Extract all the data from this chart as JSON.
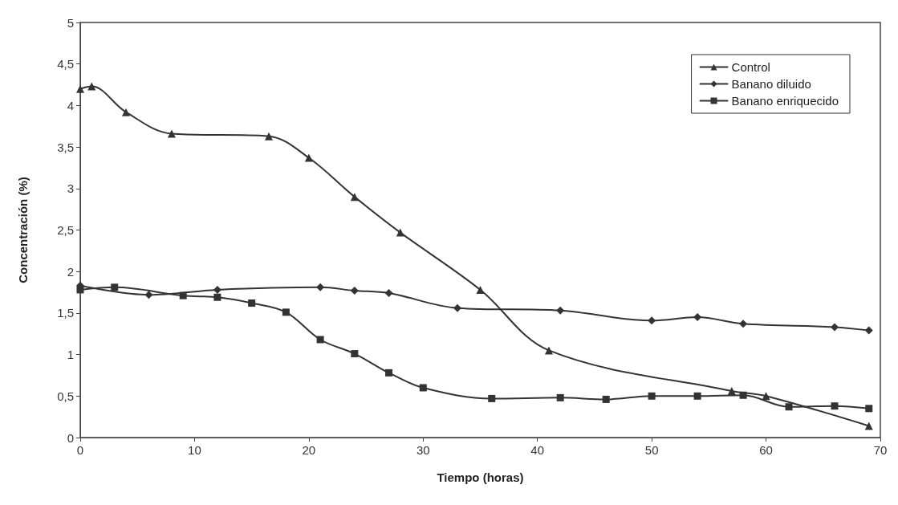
{
  "chart_data": {
    "type": "line",
    "xlabel": "Tiempo (horas)",
    "ylabel": "Concentración (%)",
    "xlim": [
      0,
      70
    ],
    "xticks": [
      0,
      10,
      20,
      30,
      40,
      50,
      60,
      70
    ],
    "ylim": [
      0,
      5
    ],
    "yticks": [
      0,
      {
        "value": 0.5,
        "label": "0,5"
      },
      1,
      {
        "value": 1.5,
        "label": "1,5"
      },
      2,
      {
        "value": 2.5,
        "label": "2,5"
      },
      3,
      {
        "value": 3.5,
        "label": "3,5"
      },
      4,
      {
        "value": 4.5,
        "label": "4,5"
      },
      5
    ],
    "grid": false,
    "legend": "top right",
    "line_style": "solid",
    "series": [
      {
        "name": "Control",
        "color": "#333333",
        "marker": "triangle",
        "x": [
          0,
          1,
          4,
          8,
          16.5,
          20,
          24,
          28,
          35,
          41,
          57,
          60,
          69
        ],
        "values": [
          4.2,
          4.23,
          3.92,
          3.66,
          3.63,
          3.37,
          2.9,
          2.47,
          1.78,
          1.05,
          0.56,
          0.5,
          0.14
        ]
      },
      {
        "name": "Banano diluido",
        "color": "#333333",
        "marker": "diamond",
        "x": [
          0,
          6,
          12,
          21,
          24,
          27,
          33,
          42,
          50,
          54,
          58,
          66,
          69
        ],
        "values": [
          1.83,
          1.72,
          1.78,
          1.81,
          1.77,
          1.74,
          1.56,
          1.53,
          1.41,
          1.45,
          1.37,
          1.33,
          1.29
        ]
      },
      {
        "name": "Banano enriquecido",
        "color": "#333333",
        "marker": "square",
        "x": [
          0,
          3,
          9,
          12,
          15,
          18,
          21,
          24,
          27,
          30,
          36,
          42,
          46,
          50,
          54,
          58,
          62,
          66,
          69
        ],
        "values": [
          1.78,
          1.81,
          1.71,
          1.69,
          1.62,
          1.51,
          1.18,
          1.01,
          0.78,
          0.6,
          0.47,
          0.48,
          0.46,
          0.5,
          0.5,
          0.51,
          0.37,
          0.38,
          0.35
        ]
      }
    ]
  }
}
